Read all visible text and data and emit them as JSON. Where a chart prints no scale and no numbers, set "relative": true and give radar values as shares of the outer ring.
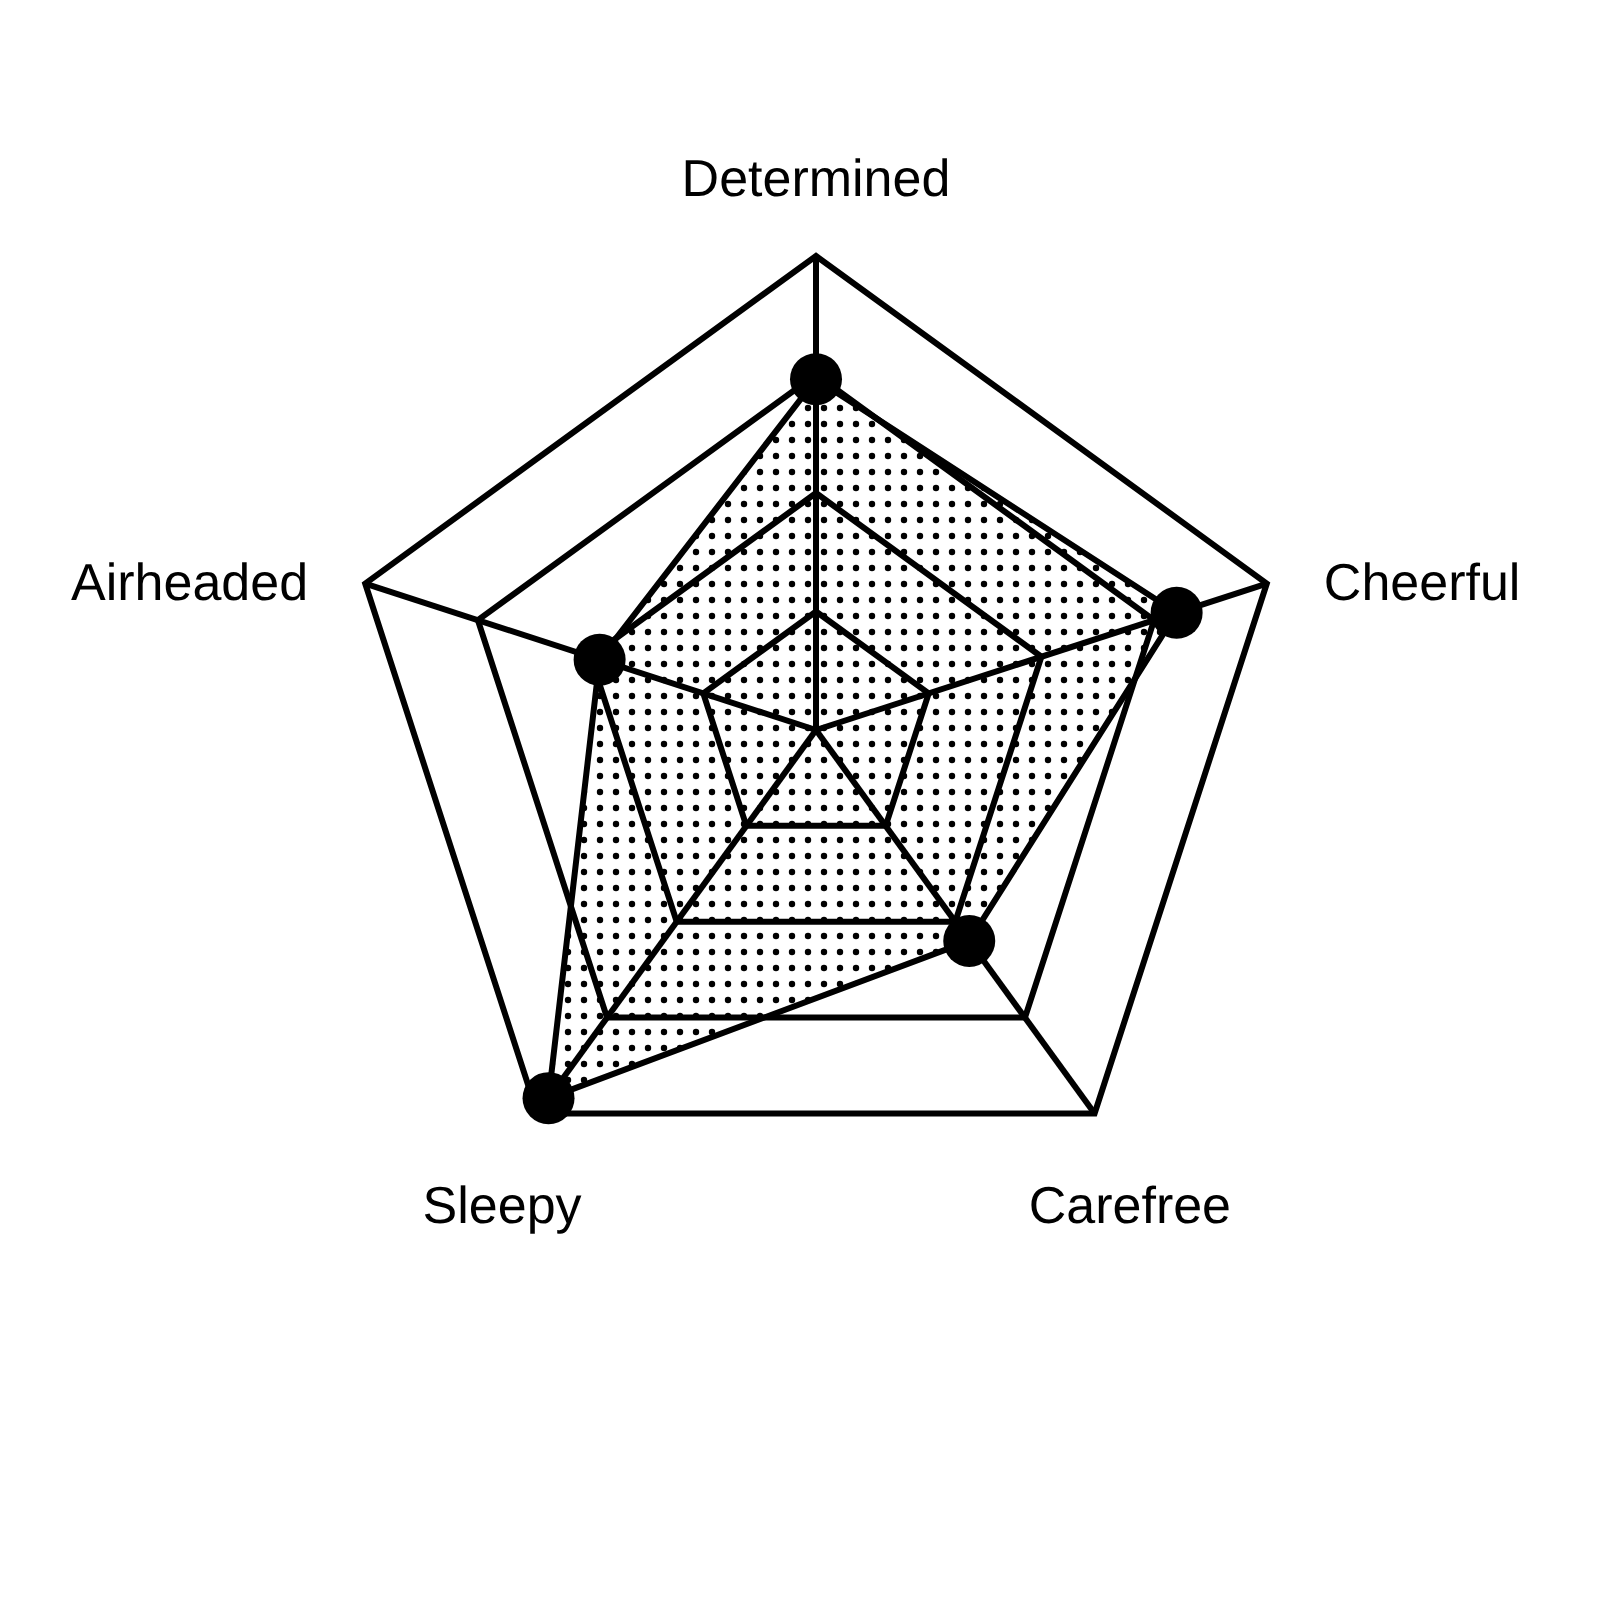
{
  "chart_data": {
    "type": "radar",
    "relative": true,
    "categories": [
      "Determined",
      "Cheerful",
      "Carefree",
      "Sleepy",
      "Airheaded"
    ],
    "series": [
      {
        "color": "#000000",
        "values": [
          0.74,
          0.8,
          0.55,
          0.96,
          0.48
        ]
      }
    ],
    "grid": true,
    "marker": "circle"
  }
}
